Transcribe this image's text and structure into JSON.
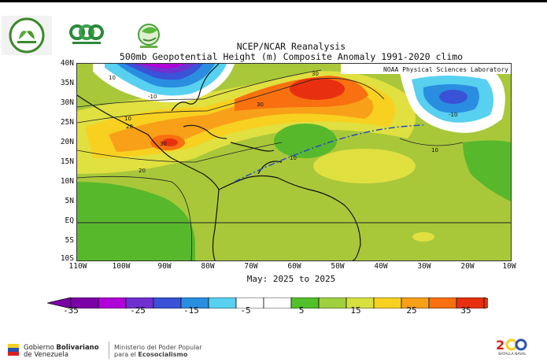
{
  "titles": {
    "line1": "NCEP/NCAR Reanalysis",
    "line2": "500mb Geopotential Height (m) Composite Anomaly 1991-2020 climo",
    "lab": "NOAA Physical Sciences Laboratory",
    "date": "May: 2025 to 2025"
  },
  "lat_labels": [
    "40N",
    "35N",
    "30N",
    "25N",
    "20N",
    "15N",
    "10N",
    "5N",
    "EQ",
    "5S",
    "10S"
  ],
  "lon_labels": [
    "110W",
    "100W",
    "90W",
    "80W",
    "70W",
    "60W",
    "50W",
    "40W",
    "30W",
    "20W",
    "10W"
  ],
  "contour_labels": [
    "30",
    "30",
    "30",
    "20",
    "20",
    "10",
    "10",
    "-10",
    "-10",
    "10",
    "10"
  ],
  "colorbar": {
    "colors": [
      "#7a00a8",
      "#b000d8",
      "#7030d0",
      "#3a52d8",
      "#2a8ee0",
      "#58d0f0",
      "#ffffff",
      "#ffffff",
      "#52c028",
      "#a0d040",
      "#d8e040",
      "#f8d020",
      "#f8a018",
      "#f87010",
      "#e83010"
    ],
    "labels": [
      "-35",
      "-25",
      "-15",
      "-5",
      "5",
      "15",
      "25",
      "35"
    ]
  },
  "footer": {
    "gov_line1_a": "Gobierno ",
    "gov_line1_b": "Bolivariano",
    "gov_line2": "de Venezuela",
    "ministry_line1": "Ministerio del Poder Popular",
    "ministry_line2_a": "para el ",
    "ministry_line2_b": "Ecosocialismo",
    "bicent_sub": "BATALLA NAVAL"
  }
}
